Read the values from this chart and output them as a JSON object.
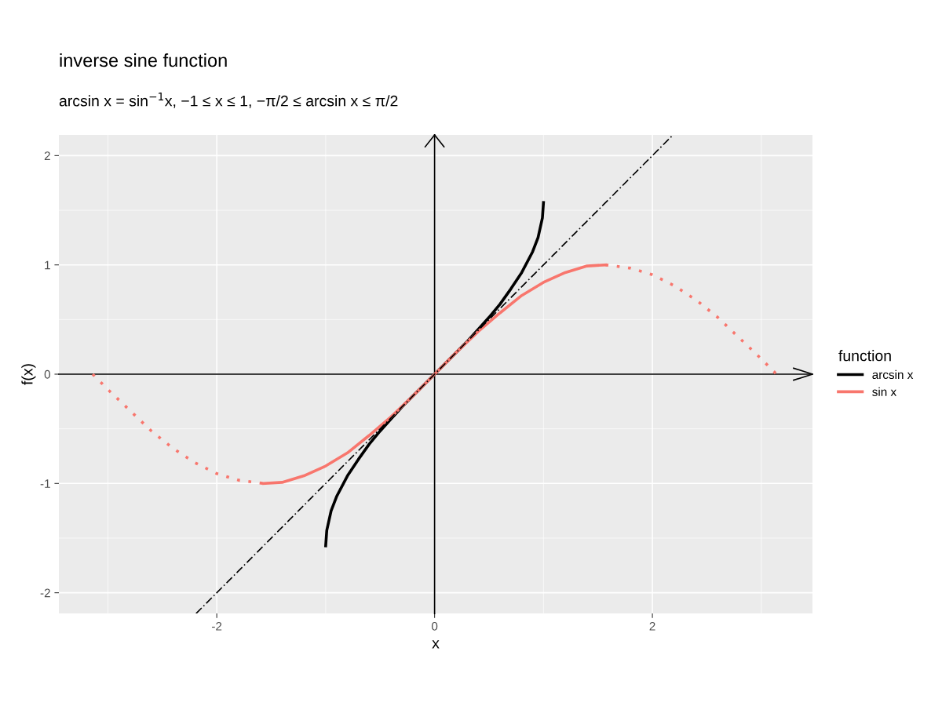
{
  "chart_data": {
    "type": "line",
    "title": "inverse sine function",
    "subtitle": "arcsin x = sin$^{−1}$x, −1 ≤ x ≤ 1, −π/2 ≤ arcsin x ≤ π/2",
    "xlabel": "x",
    "ylabel": "f(x)",
    "legend_title": "function",
    "legend": "right",
    "grid": true,
    "xlim": [
      -3.45,
      3.47
    ],
    "ylim": [
      -2.19,
      2.19
    ],
    "xticks": [
      -2,
      0,
      2
    ],
    "yticks": [
      -2,
      -1,
      0,
      1,
      2
    ],
    "series": [
      {
        "name": "arcsin x",
        "color": "#000000",
        "line_style": "solid",
        "x": [
          -1,
          -0.99,
          -0.95,
          -0.9,
          -0.8,
          -0.7,
          -0.6,
          -0.5,
          -0.4,
          -0.3,
          -0.2,
          -0.1,
          0,
          0.1,
          0.2,
          0.3,
          0.4,
          0.5,
          0.6,
          0.7,
          0.8,
          0.9,
          0.95,
          0.99,
          1
        ],
        "values": [
          -1.57,
          -1.43,
          -1.25,
          -1.12,
          -0.93,
          -0.78,
          -0.64,
          -0.52,
          -0.41,
          -0.3,
          -0.2,
          -0.1,
          0,
          0.1,
          0.2,
          0.3,
          0.41,
          0.52,
          0.64,
          0.78,
          0.93,
          1.12,
          1.25,
          1.43,
          1.57
        ]
      },
      {
        "name": "sin x",
        "color": "#f8766d",
        "line_style": "solid",
        "x": [
          -1.57,
          -1.4,
          -1.2,
          -1.0,
          -0.8,
          -0.6,
          -0.4,
          -0.2,
          0,
          0.2,
          0.4,
          0.6,
          0.8,
          1.0,
          1.2,
          1.4,
          1.57
        ],
        "values": [
          -1,
          -0.99,
          -0.93,
          -0.84,
          -0.72,
          -0.56,
          -0.39,
          -0.2,
          0,
          0.2,
          0.39,
          0.56,
          0.72,
          0.84,
          0.93,
          0.99,
          1
        ]
      },
      {
        "color": "#f8766d",
        "line_style": "dotted",
        "x": [
          -3.14,
          -3.0,
          -2.8,
          -2.6,
          -2.4,
          -2.2,
          -2.0,
          -1.8,
          -1.57
        ],
        "values": [
          0,
          -0.14,
          -0.33,
          -0.52,
          -0.68,
          -0.81,
          -0.91,
          -0.97,
          -1
        ]
      },
      {
        "color": "#f8766d",
        "line_style": "dotted",
        "x": [
          1.57,
          1.8,
          2.0,
          2.2,
          2.4,
          2.6,
          2.8,
          3.0,
          3.14
        ],
        "values": [
          1,
          0.97,
          0.91,
          0.81,
          0.68,
          0.52,
          0.33,
          0.14,
          0
        ]
      },
      {
        "color": "#000000",
        "line_style": "dashed",
        "x": [
          -2.19,
          2.19
        ],
        "values": [
          -2.19,
          2.19
        ]
      }
    ]
  }
}
